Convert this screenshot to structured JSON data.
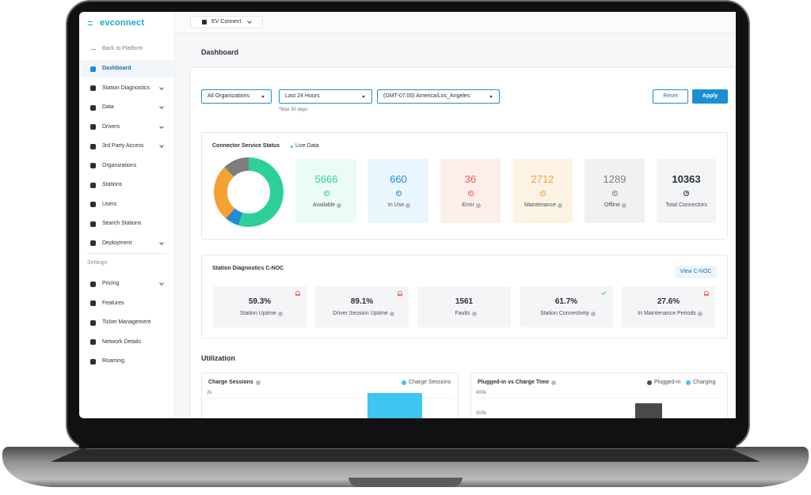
{
  "sidebar": {
    "brand": "evconnect",
    "back": "Back to Platform",
    "nav": [
      {
        "label": "Dashboard",
        "active": true
      },
      {
        "label": "Station Diagnostics",
        "expandable": true
      },
      {
        "label": "Data",
        "expandable": true
      },
      {
        "label": "Drivers",
        "expandable": true
      },
      {
        "label": "3rd Party Access",
        "expandable": true
      },
      {
        "label": "Organizations"
      },
      {
        "label": "Stations"
      },
      {
        "label": "Users"
      },
      {
        "label": "Search Stations"
      },
      {
        "label": "Deployment",
        "expandable": true
      }
    ],
    "settings_label": "Settings",
    "settings_nav": [
      {
        "label": "Pricing",
        "expandable": true
      },
      {
        "label": "Features"
      },
      {
        "label": "Ticket Management"
      },
      {
        "label": "Network Details"
      },
      {
        "label": "Roaming"
      }
    ]
  },
  "topbar": {
    "org": "EV Connect"
  },
  "page_title": "Dashboard",
  "filters": {
    "organization": "All Organizations",
    "range": "Last 24 Hours",
    "timezone": "(GMT-07:00) America/Los_Angeles",
    "note": "*Max 30 days",
    "reset": "Reset",
    "apply": "Apply"
  },
  "connector_status": {
    "title": "Connector Service Status",
    "live": "Live Data",
    "cards": [
      {
        "value": 5666,
        "label": "Available",
        "color": "#2fcf9c",
        "bg": "#ebfbf5"
      },
      {
        "value": 660,
        "label": "In Use",
        "color": "#1b8fd2",
        "bg": "#eaf6fd"
      },
      {
        "value": 36,
        "label": "Error",
        "color": "#ef5b4c",
        "bg": "#fdeeec"
      },
      {
        "value": 2712,
        "label": "Maintenance",
        "color": "#f5a233",
        "bg": "#fdf3e5"
      },
      {
        "value": 1289,
        "label": "Offline",
        "color": "#7d7d7d",
        "bg": "#f1f1f1"
      }
    ],
    "total": {
      "value": 10363,
      "label": "Total Connectors"
    }
  },
  "diagnostics": {
    "title": "Station Diagnostics C-NOC",
    "button": "View C-NOC",
    "cards": [
      {
        "value": "59.3%",
        "label": "Station Uptime",
        "indicator": "alert"
      },
      {
        "value": "89.1%",
        "label": "Driver Session Uptime",
        "indicator": "alert"
      },
      {
        "value": "1561",
        "label": "Faults"
      },
      {
        "value": "61.7%",
        "label": "Station Connectivity",
        "indicator": "ok"
      },
      {
        "value": "27.6%",
        "label": "In Maintenance Periods",
        "indicator": "alert"
      }
    ]
  },
  "utilization": {
    "title": "Utilization",
    "charts": [
      {
        "type": "bar",
        "title": "Charge Sessions",
        "series": [
          {
            "name": "Charge Sessions",
            "color": "#3ec6f2",
            "values": [
              1900
            ]
          }
        ],
        "yticks": [
          {
            "value": 2000,
            "label": "2k"
          }
        ]
      },
      {
        "type": "bar",
        "title": "Plugged-in vs Charge Time",
        "series": [
          {
            "name": "Plugged-in",
            "color": "#4a4a4a",
            "values": [
              350000
            ]
          },
          {
            "name": "Charging",
            "color": "#3ec6f2",
            "values": [
              null
            ]
          }
        ],
        "yticks": [
          {
            "value": 400000,
            "label": "400k"
          },
          {
            "value": 300000,
            "label": "300k"
          }
        ]
      }
    ]
  }
}
